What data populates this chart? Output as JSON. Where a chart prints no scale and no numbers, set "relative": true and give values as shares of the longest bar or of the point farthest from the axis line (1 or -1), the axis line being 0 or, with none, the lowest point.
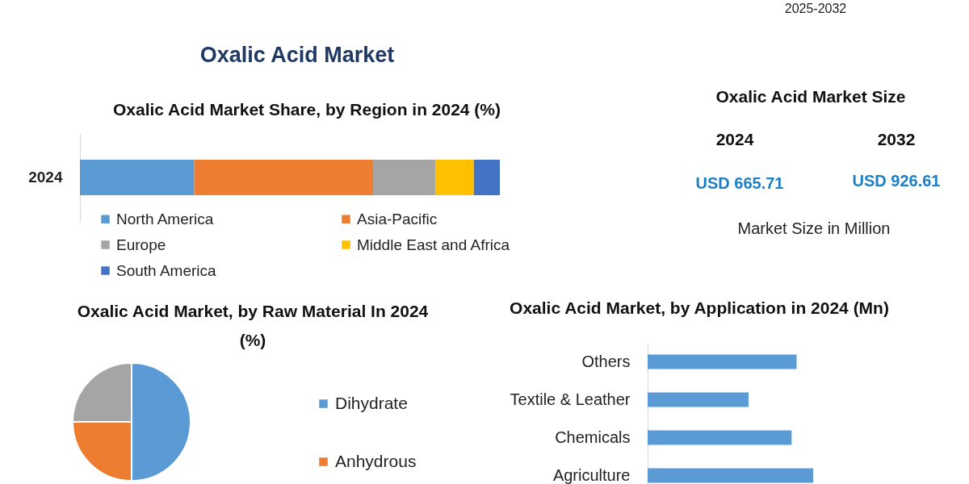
{
  "chart_data": [
    {
      "type": "other",
      "title": "Oxalic Acid Market",
      "annotations": [
        "2025-2032"
      ]
    },
    {
      "type": "bar",
      "title": "Oxalic Acid Market Share, by Region in 2024 (%)",
      "categories": [
        "2024"
      ],
      "orientation": "horizontal",
      "stacked": true,
      "relative": true,
      "legend": "bottom",
      "series": [
        {
          "name": "North America",
          "color": "#5b9bd5",
          "values": [
            0.272
          ]
        },
        {
          "name": "Asia-Pacific",
          "color": "#ed7d31",
          "values": [
            0.426
          ]
        },
        {
          "name": "Europe",
          "color": "#a5a5a5",
          "values": [
            0.148
          ]
        },
        {
          "name": "Middle East and Africa",
          "color": "#ffc000",
          "values": [
            0.092
          ]
        },
        {
          "name": "South America",
          "color": "#4472c4",
          "values": [
            0.062
          ]
        }
      ]
    },
    {
      "type": "other",
      "title": "Oxalic Acid Market Size",
      "categories": [
        "2024",
        "2032"
      ],
      "value_labels": [
        "USD 665.71",
        "USD 926.61"
      ],
      "annotations": [
        "Market Size in Million"
      ]
    },
    {
      "type": "pie",
      "title": "Oxalic Acid Market, by Raw Material In 2024 (%)",
      "categories": [
        "Dihydrate",
        "Anhydrous",
        null
      ],
      "values": [
        50,
        25,
        25
      ],
      "colors": [
        "#5b9bd5",
        "#ed7d31",
        "#a5a5a5"
      ],
      "legend": "right"
    },
    {
      "type": "bar",
      "title": "Oxalic Acid Market, by Application in 2024 (Mn)",
      "categories": [
        "Others",
        "Textile & Leather",
        "Chemicals",
        "Agriculture"
      ],
      "orientation": "horizontal",
      "relative": true,
      "values": [
        0.9,
        0.61,
        0.87,
        1
      ],
      "color": "#5b9bd5"
    }
  ]
}
